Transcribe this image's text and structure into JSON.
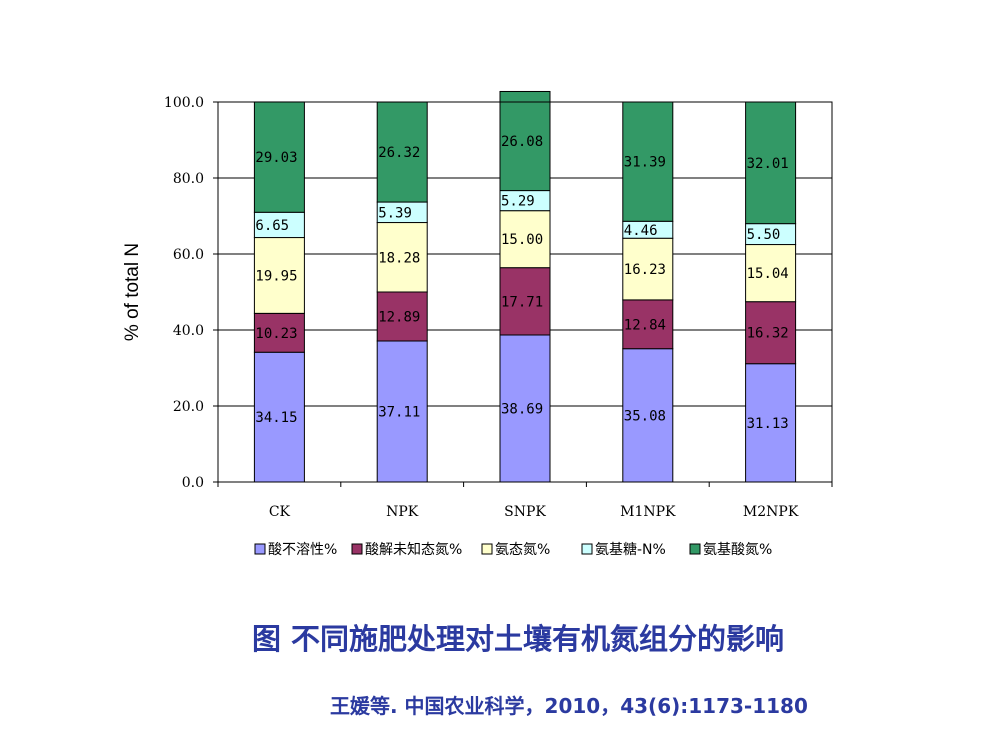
{
  "chart_data": {
    "type": "bar",
    "stacked": true,
    "categories": [
      "CK",
      "NPK",
      "SNPK",
      "M1NPK",
      "M2NPK"
    ],
    "series": [
      {
        "name": "酸不溶性%",
        "color": "#9999ff",
        "values": [
          34.15,
          37.11,
          38.69,
          35.08,
          31.13
        ]
      },
      {
        "name": "酸解未知态氮%",
        "color": "#993366",
        "values": [
          10.23,
          12.89,
          17.71,
          12.84,
          16.32
        ]
      },
      {
        "name": "氨态氮%",
        "color": "#ffffcc",
        "values": [
          19.95,
          18.28,
          15.0,
          16.23,
          15.04
        ]
      },
      {
        "name": "氨基糖-N%",
        "color": "#ccffff",
        "values": [
          6.65,
          5.39,
          5.29,
          4.46,
          5.5
        ]
      },
      {
        "name": "氨基酸氮%",
        "color": "#339966",
        "values": [
          29.03,
          26.32,
          26.08,
          31.39,
          32.01
        ]
      }
    ],
    "ylabel": "% of total N",
    "ylim": [
      0,
      100
    ],
    "yticks": [
      "0.0",
      "20.0",
      "40.0",
      "60.0",
      "80.0",
      "100.0"
    ],
    "grid": true,
    "legend_position": "bottom"
  },
  "caption": "图 不同施肥处理对土壤有机氮组分的影响",
  "citation": "王媛等. 中国农业科学，2010，43(6):1173-1180"
}
